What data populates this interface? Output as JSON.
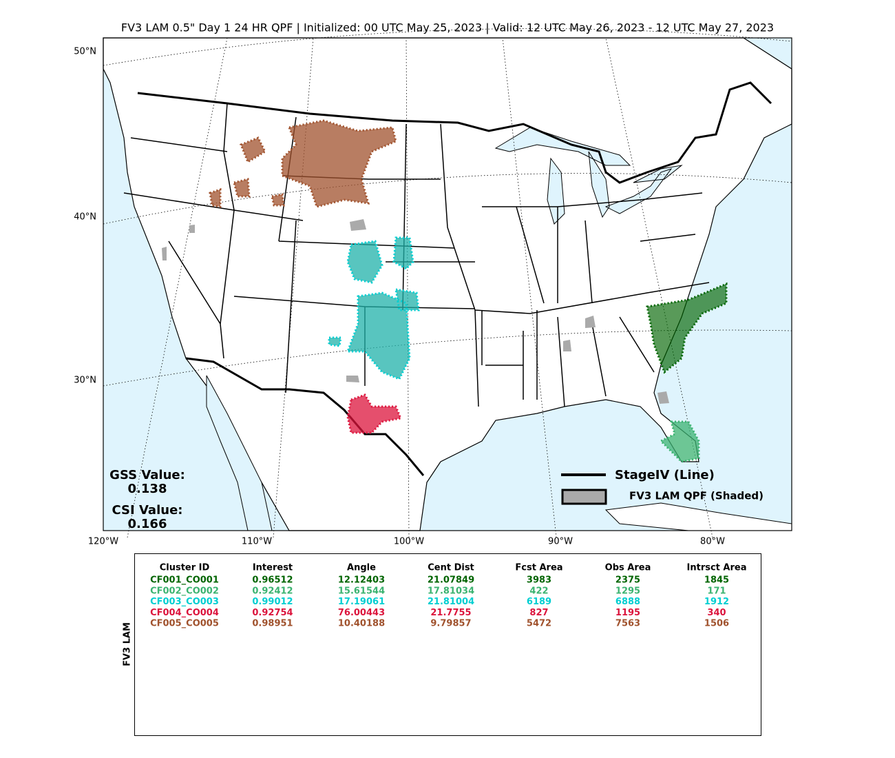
{
  "title": "FV3 LAM 0.5\" Day 1 24 HR QPF | Initialized: 00 UTC May 25, 2023 | Valid: 12 UTC May 26, 2023 - 12 UTC May 27, 2023",
  "map": {
    "lat_labels": [
      "50°N",
      "40°N",
      "30°N"
    ],
    "lon_labels": [
      "120°W",
      "110°W",
      "100°W",
      "90°W",
      "80°W"
    ],
    "scores": [
      {
        "label": "GSS Value:",
        "value": 0.138
      },
      {
        "label": "CSI Value:",
        "value": 0.166
      }
    ],
    "legend": [
      "StageIV (Line)",
      "FV3 LAM QPF (Shaded)"
    ]
  },
  "table": {
    "side_label": "FV3 LAM",
    "headers": [
      "Cluster ID",
      "Interest",
      "Angle",
      "Cent Dist",
      "Fcst Area",
      "Obs Area",
      "Intrsct Area"
    ],
    "rows": [
      {
        "color": "#006400",
        "cells": [
          "CF001_CO001",
          0.96512,
          12.12403,
          21.07849,
          3983,
          2375,
          1845
        ]
      },
      {
        "color": "#3cb371",
        "cells": [
          "CF002_CO002",
          0.92412,
          15.61544,
          17.81034,
          422,
          1295,
          171
        ]
      },
      {
        "color": "#00ced1",
        "cells": [
          "CF003_CO003",
          0.99012,
          17.19061,
          21.81004,
          6189,
          6888,
          1912
        ]
      },
      {
        "color": "#dc143c",
        "cells": [
          "CF004_CO004",
          0.92754,
          76.00443,
          21.7755,
          827,
          1195,
          340
        ]
      },
      {
        "color": "#a0522d",
        "cells": [
          "CF005_CO005",
          0.98951,
          10.40188,
          9.79857,
          5472,
          7563,
          1506
        ]
      }
    ]
  }
}
